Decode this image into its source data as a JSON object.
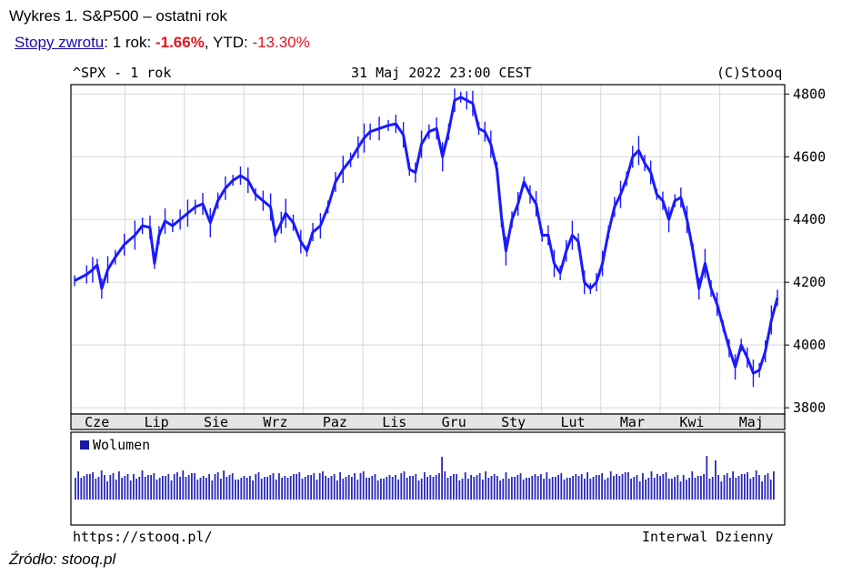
{
  "header": {
    "title": "Wykres 1. S&P500 – ostatni rok",
    "returns_link": "Stopy zwrotu",
    "returns_sep": ": ",
    "one_year_label": "1 rok: ",
    "one_year_value": "-1.66%",
    "ytd_label": ", YTD: ",
    "ytd_value": "-13.30%"
  },
  "chart_header": {
    "symbol": "^SPX - 1 rok",
    "date": "31 Maj 2022 23:00 CEST",
    "copyright": "(C)Stooq"
  },
  "footer": {
    "url": "https://stooq.pl/",
    "interval": "Interwal Dzienny",
    "source": "Źródło: stooq.pl"
  },
  "colors": {
    "candle": "#1a1aff",
    "volume": "#2a2ab8",
    "grid": "#d8d8d8",
    "negative": "#e8141e",
    "link": "#1a0dab"
  },
  "chart_data": {
    "type": "line",
    "title": "^SPX - 1 rok",
    "ylim": [
      3780,
      4830
    ],
    "yticks": [
      3800,
      4000,
      4200,
      4400,
      4600,
      4800
    ],
    "months": [
      "Cze",
      "Lip",
      "Sie",
      "Wrz",
      "Paz",
      "Lis",
      "Gru",
      "Sty",
      "Lut",
      "Mar",
      "Kwi",
      "Maj"
    ],
    "grid": true,
    "series": [
      {
        "points": [
          [
            0,
            4205
          ],
          [
            8,
            4225
          ],
          [
            12,
            4240
          ],
          [
            15,
            4255
          ],
          [
            18,
            4180
          ],
          [
            22,
            4240
          ],
          [
            27,
            4280
          ],
          [
            33,
            4320
          ],
          [
            40,
            4350
          ],
          [
            45,
            4380
          ],
          [
            50,
            4375
          ],
          [
            53,
            4260
          ],
          [
            56,
            4350
          ],
          [
            60,
            4395
          ],
          [
            65,
            4380
          ],
          [
            70,
            4400
          ],
          [
            75,
            4420
          ],
          [
            80,
            4440
          ],
          [
            85,
            4450
          ],
          [
            90,
            4390
          ],
          [
            95,
            4460
          ],
          [
            100,
            4500
          ],
          [
            105,
            4525
          ],
          [
            110,
            4540
          ],
          [
            115,
            4525
          ],
          [
            120,
            4480
          ],
          [
            125,
            4460
          ],
          [
            130,
            4440
          ],
          [
            133,
            4350
          ],
          [
            137,
            4390
          ],
          [
            140,
            4420
          ],
          [
            145,
            4390
          ],
          [
            150,
            4330
          ],
          [
            154,
            4300
          ],
          [
            158,
            4360
          ],
          [
            163,
            4380
          ],
          [
            168,
            4440
          ],
          [
            173,
            4520
          ],
          [
            178,
            4560
          ],
          [
            183,
            4590
          ],
          [
            188,
            4630
          ],
          [
            192,
            4660
          ],
          [
            196,
            4680
          ],
          [
            202,
            4690
          ],
          [
            208,
            4700
          ],
          [
            213,
            4705
          ],
          [
            218,
            4670
          ],
          [
            222,
            4560
          ],
          [
            226,
            4550
          ],
          [
            230,
            4640
          ],
          [
            235,
            4680
          ],
          [
            240,
            4690
          ],
          [
            244,
            4600
          ],
          [
            248,
            4680
          ],
          [
            252,
            4780
          ],
          [
            256,
            4790
          ],
          [
            260,
            4780
          ],
          [
            264,
            4770
          ],
          [
            268,
            4690
          ],
          [
            272,
            4680
          ],
          [
            276,
            4640
          ],
          [
            280,
            4560
          ],
          [
            283,
            4410
          ],
          [
            286,
            4300
          ],
          [
            290,
            4400
          ],
          [
            294,
            4450
          ],
          [
            298,
            4520
          ],
          [
            302,
            4480
          ],
          [
            306,
            4450
          ],
          [
            310,
            4350
          ],
          [
            314,
            4350
          ],
          [
            318,
            4260
          ],
          [
            322,
            4230
          ],
          [
            326,
            4300
          ],
          [
            330,
            4350
          ],
          [
            334,
            4330
          ],
          [
            338,
            4200
          ],
          [
            342,
            4180
          ],
          [
            346,
            4200
          ],
          [
            350,
            4260
          ],
          [
            354,
            4360
          ],
          [
            358,
            4440
          ],
          [
            362,
            4480
          ],
          [
            366,
            4530
          ],
          [
            370,
            4600
          ],
          [
            374,
            4620
          ],
          [
            378,
            4580
          ],
          [
            382,
            4550
          ],
          [
            386,
            4480
          ],
          [
            390,
            4460
          ],
          [
            394,
            4400
          ],
          [
            398,
            4460
          ],
          [
            402,
            4470
          ],
          [
            406,
            4400
          ],
          [
            410,
            4300
          ],
          [
            414,
            4180
          ],
          [
            418,
            4260
          ],
          [
            422,
            4180
          ],
          [
            426,
            4130
          ],
          [
            430,
            4060
          ],
          [
            434,
            3990
          ],
          [
            438,
            3930
          ],
          [
            442,
            4000
          ],
          [
            446,
            3960
          ],
          [
            450,
            3910
          ],
          [
            454,
            3920
          ],
          [
            458,
            3980
          ],
          [
            462,
            4080
          ],
          [
            466,
            4150
          ]
        ]
      }
    ],
    "volume": {
      "legend": "Wolumen"
    }
  }
}
